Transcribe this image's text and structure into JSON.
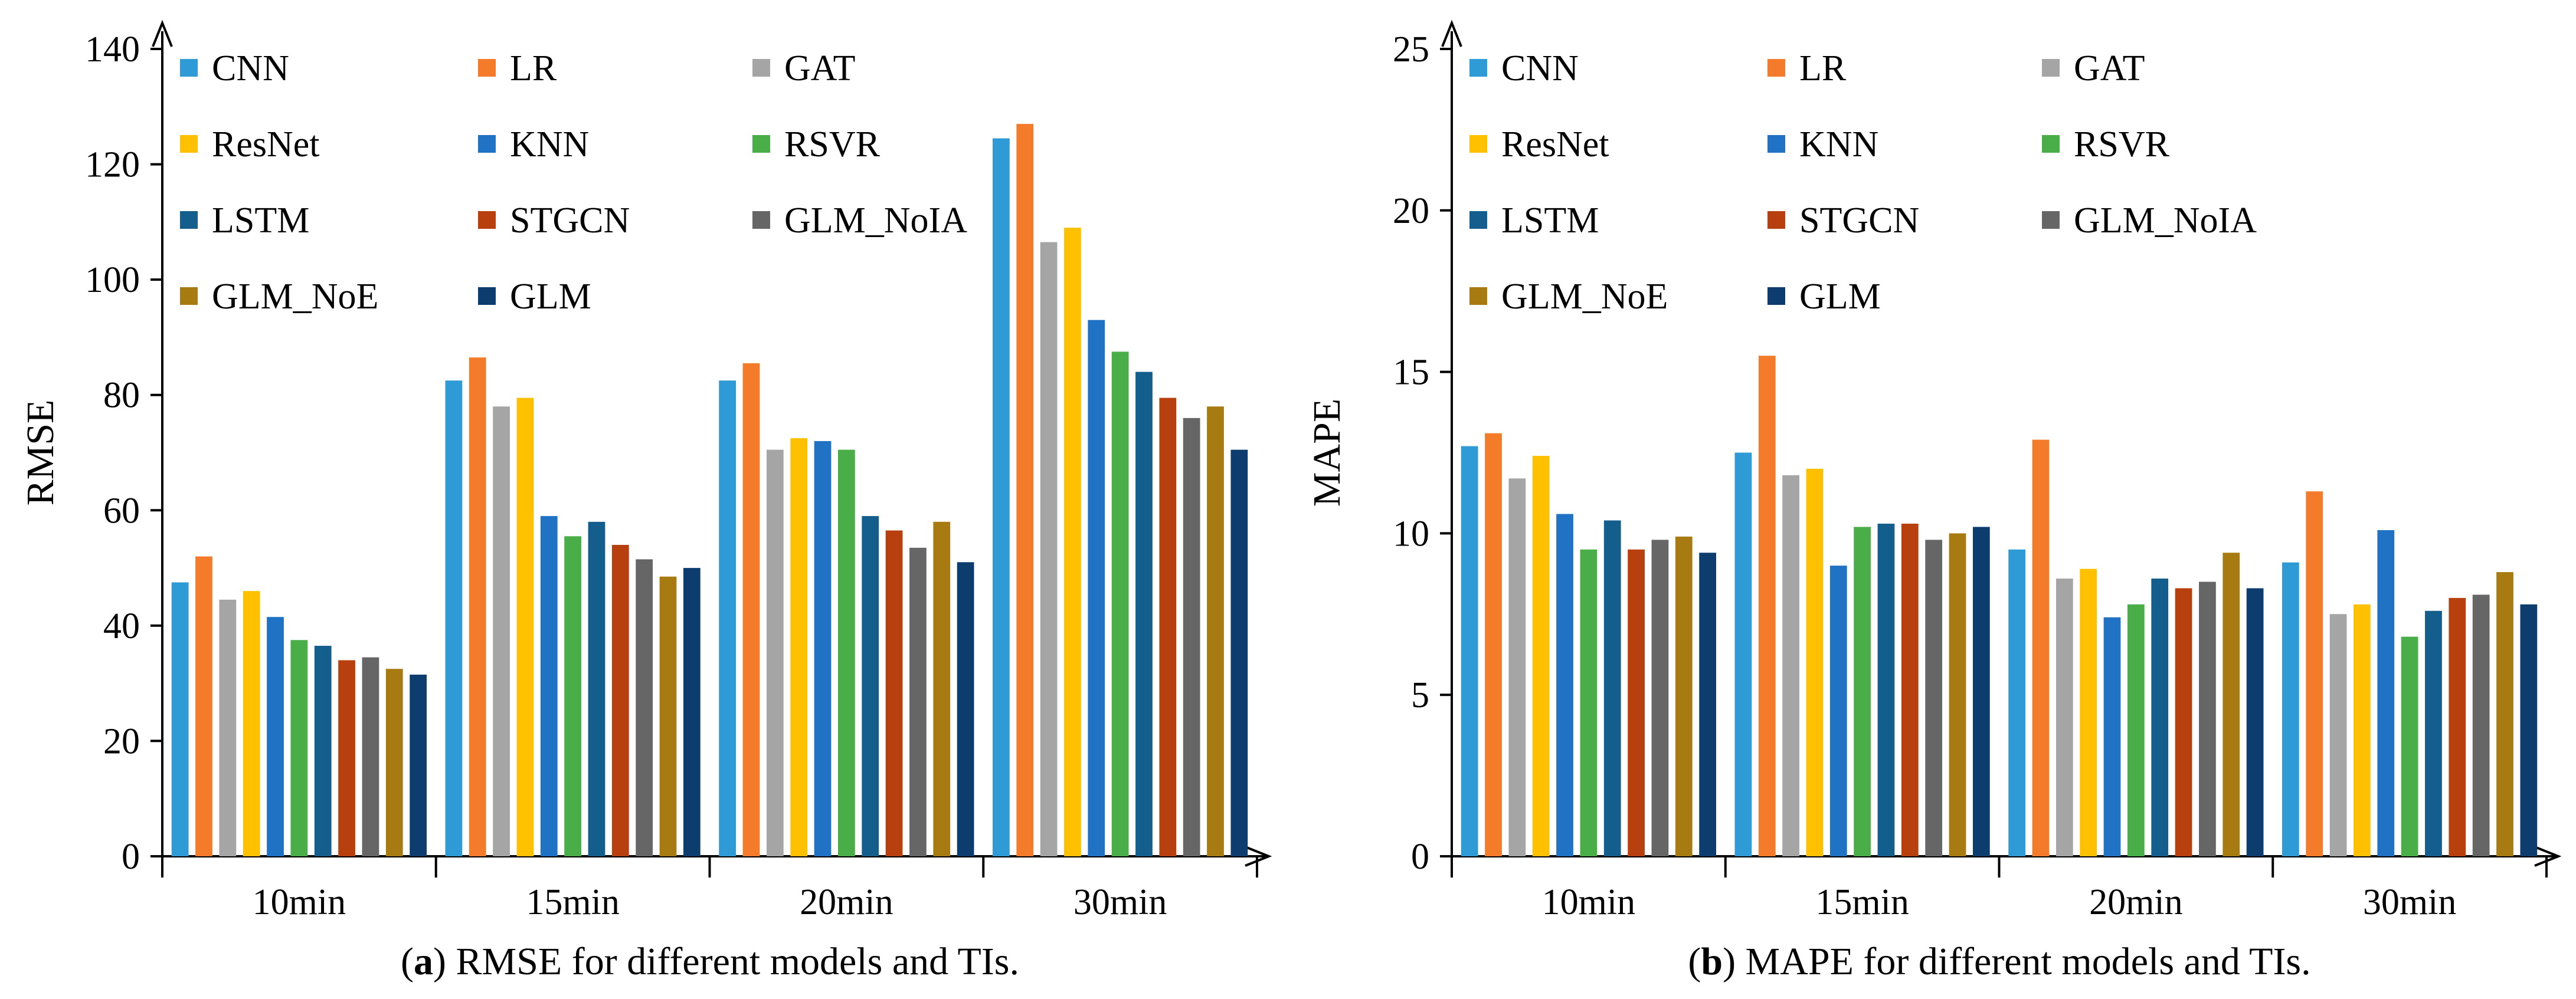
{
  "chart_data": [
    {
      "id": "a",
      "type": "bar",
      "caption_letter": "a",
      "caption_open": "(",
      "caption_close": ")",
      "caption_rest": " RMSE for different models and TIs.",
      "title": "",
      "xlabel": "",
      "ylabel": "RMSE",
      "ylim": [
        0,
        140
      ],
      "yticks": [
        0,
        20,
        40,
        60,
        80,
        100,
        120,
        140
      ],
      "categories": [
        "10min",
        "15min",
        "20min",
        "30min"
      ],
      "legend_location": "top-left, inside plot, 3 columns",
      "series": [
        {
          "name": "CNN",
          "color": "#2E9BD6",
          "values": [
            47.5,
            82.5,
            82.5,
            124.5
          ]
        },
        {
          "name": "LR",
          "color": "#F47B2A",
          "values": [
            52,
            86.5,
            85.5,
            127
          ]
        },
        {
          "name": "GAT",
          "color": "#A5A5A5",
          "values": [
            44.5,
            78,
            70.5,
            106.5
          ]
        },
        {
          "name": "ResNet",
          "color": "#FFC000",
          "values": [
            46,
            79.5,
            72.5,
            109
          ]
        },
        {
          "name": "KNN",
          "color": "#1F72C4",
          "values": [
            41.5,
            59,
            72,
            93
          ]
        },
        {
          "name": "RSVR",
          "color": "#4AAE48",
          "values": [
            37.5,
            55.5,
            70.5,
            87.5
          ]
        },
        {
          "name": "LSTM",
          "color": "#135E8C",
          "values": [
            36.5,
            58,
            59,
            84
          ]
        },
        {
          "name": "STGCN",
          "color": "#B8400E",
          "values": [
            34,
            54,
            56.5,
            79.5
          ]
        },
        {
          "name": "GLM_NoIA",
          "color": "#666666",
          "values": [
            34.5,
            51.5,
            53.5,
            76
          ]
        },
        {
          "name": "GLM_NoE",
          "color": "#A77A12",
          "values": [
            32.5,
            48.5,
            58,
            78
          ]
        },
        {
          "name": "GLM",
          "color": "#0D3D6E",
          "values": [
            31.5,
            50,
            51,
            70.5
          ]
        }
      ]
    },
    {
      "id": "b",
      "type": "bar",
      "caption_letter": "b",
      "caption_open": "(",
      "caption_close": ")",
      "caption_rest": " MAPE for different models and TIs.",
      "title": "",
      "xlabel": "",
      "ylabel": "MAPE",
      "ylim": [
        0,
        25
      ],
      "yticks": [
        0,
        5,
        10,
        15,
        20,
        25
      ],
      "categories": [
        "10min",
        "15min",
        "20min",
        "30min"
      ],
      "legend_location": "top-left, inside plot, 3 columns",
      "series": [
        {
          "name": "CNN",
          "color": "#2E9BD6",
          "values": [
            12.7,
            12.5,
            9.5,
            9.1
          ]
        },
        {
          "name": "LR",
          "color": "#F47B2A",
          "values": [
            13.1,
            15.5,
            12.9,
            11.3
          ]
        },
        {
          "name": "GAT",
          "color": "#A5A5A5",
          "values": [
            11.7,
            11.8,
            8.6,
            7.5
          ]
        },
        {
          "name": "ResNet",
          "color": "#FFC000",
          "values": [
            12.4,
            12,
            8.9,
            7.8
          ]
        },
        {
          "name": "KNN",
          "color": "#1F72C4",
          "values": [
            10.6,
            9,
            7.4,
            10.1
          ]
        },
        {
          "name": "RSVR",
          "color": "#4AAE48",
          "values": [
            9.5,
            10.2,
            7.8,
            6.8
          ]
        },
        {
          "name": "LSTM",
          "color": "#135E8C",
          "values": [
            10.4,
            10.3,
            8.6,
            7.6
          ]
        },
        {
          "name": "STGCN",
          "color": "#B8400E",
          "values": [
            9.5,
            10.3,
            8.3,
            8
          ]
        },
        {
          "name": "GLM_NoIA",
          "color": "#666666",
          "values": [
            9.8,
            9.8,
            8.5,
            8.1
          ]
        },
        {
          "name": "GLM_NoE",
          "color": "#A77A12",
          "values": [
            9.9,
            10,
            9.4,
            8.8
          ]
        },
        {
          "name": "GLM",
          "color": "#0D3D6E",
          "values": [
            9.4,
            10.2,
            8.3,
            7.8
          ]
        }
      ]
    }
  ]
}
